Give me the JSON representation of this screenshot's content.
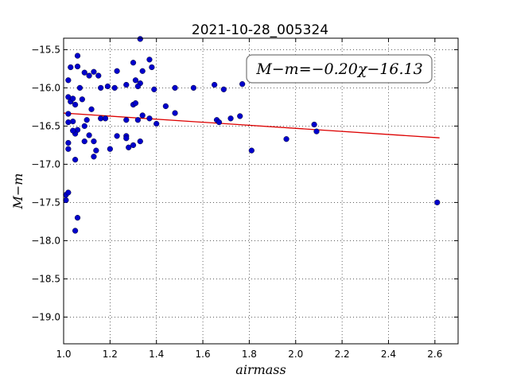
{
  "chart_data": {
    "type": "scatter",
    "title": "2021-10-28_005324",
    "xlabel": "airmass",
    "ylabel": "M−m",
    "xlim": [
      1.0,
      2.7
    ],
    "ylim": [
      -19.35,
      -15.35
    ],
    "y_inverted": true,
    "grid": true,
    "xticks": [
      "1.0",
      "1.2",
      "1.4",
      "1.6",
      "1.8",
      "2.0",
      "2.2",
      "2.4",
      "2.6"
    ],
    "yticks": [
      "−15.5",
      "−16.0",
      "−16.5",
      "−17.0",
      "−17.5",
      "−18.0",
      "−18.5",
      "−19.0"
    ],
    "annotation": "M−m=−0.20χ−16.13",
    "point_color": "#0000cc",
    "line_color": "#dd0000",
    "fit": {
      "slope": -0.2,
      "intercept": -16.13,
      "x_range": [
        1.0,
        2.62
      ]
    },
    "points": [
      [
        1.03,
        -15.73
      ],
      [
        1.02,
        -15.9
      ],
      [
        1.06,
        -15.58
      ],
      [
        1.06,
        -15.72
      ],
      [
        1.07,
        -16.0
      ],
      [
        1.09,
        -15.8
      ],
      [
        1.11,
        -15.84
      ],
      [
        1.13,
        -15.79
      ],
      [
        1.15,
        -15.84
      ],
      [
        1.02,
        -16.12
      ],
      [
        1.03,
        -16.18
      ],
      [
        1.04,
        -16.14
      ],
      [
        1.05,
        -16.22
      ],
      [
        1.08,
        -16.15
      ],
      [
        1.12,
        -16.28
      ],
      [
        1.16,
        -16.0
      ],
      [
        1.04,
        -16.44
      ],
      [
        1.06,
        -16.55
      ],
      [
        1.02,
        -16.45
      ],
      [
        1.1,
        -16.42
      ],
      [
        1.09,
        -16.5
      ],
      [
        1.11,
        -16.62
      ],
      [
        1.13,
        -16.7
      ],
      [
        1.05,
        -16.6
      ],
      [
        1.09,
        -16.7
      ],
      [
        1.02,
        -16.72
      ],
      [
        1.02,
        -16.8
      ],
      [
        1.14,
        -16.82
      ],
      [
        1.04,
        -16.56
      ],
      [
        1.13,
        -16.9
      ],
      [
        1.05,
        -16.94
      ],
      [
        1.02,
        -16.34
      ],
      [
        1.01,
        -17.4
      ],
      [
        1.02,
        -17.37
      ],
      [
        1.01,
        -17.47
      ],
      [
        1.06,
        -17.7
      ],
      [
        1.05,
        -17.87
      ],
      [
        1.19,
        -15.98
      ],
      [
        1.23,
        -15.78
      ],
      [
        1.22,
        -16.0
      ],
      [
        1.27,
        -15.96
      ],
      [
        1.3,
        -15.67
      ],
      [
        1.31,
        -15.9
      ],
      [
        1.33,
        -15.94
      ],
      [
        1.33,
        -15.36
      ],
      [
        1.34,
        -15.78
      ],
      [
        1.37,
        -15.63
      ],
      [
        1.38,
        -15.73
      ],
      [
        1.39,
        -16.02
      ],
      [
        1.32,
        -15.98
      ],
      [
        1.3,
        -16.22
      ],
      [
        1.31,
        -16.2
      ],
      [
        1.16,
        -16.4
      ],
      [
        1.18,
        -16.4
      ],
      [
        1.27,
        -16.42
      ],
      [
        1.32,
        -16.42
      ],
      [
        1.34,
        -16.36
      ],
      [
        1.37,
        -16.4
      ],
      [
        1.4,
        -16.47
      ],
      [
        1.23,
        -16.63
      ],
      [
        1.27,
        -16.63
      ],
      [
        1.27,
        -16.66
      ],
      [
        1.3,
        -16.75
      ],
      [
        1.28,
        -16.78
      ],
      [
        1.2,
        -16.8
      ],
      [
        1.33,
        -16.7
      ],
      [
        1.44,
        -16.24
      ],
      [
        1.48,
        -16.0
      ],
      [
        1.48,
        -16.33
      ],
      [
        1.56,
        -16.0
      ],
      [
        1.65,
        -15.96
      ],
      [
        1.69,
        -16.02
      ],
      [
        1.77,
        -15.95
      ],
      [
        1.66,
        -16.42
      ],
      [
        1.67,
        -16.45
      ],
      [
        1.72,
        -16.4
      ],
      [
        1.76,
        -16.37
      ],
      [
        1.81,
        -16.82
      ],
      [
        1.96,
        -16.67
      ],
      [
        2.08,
        -16.48
      ],
      [
        2.09,
        -16.57
      ],
      [
        2.61,
        -17.5
      ]
    ]
  }
}
